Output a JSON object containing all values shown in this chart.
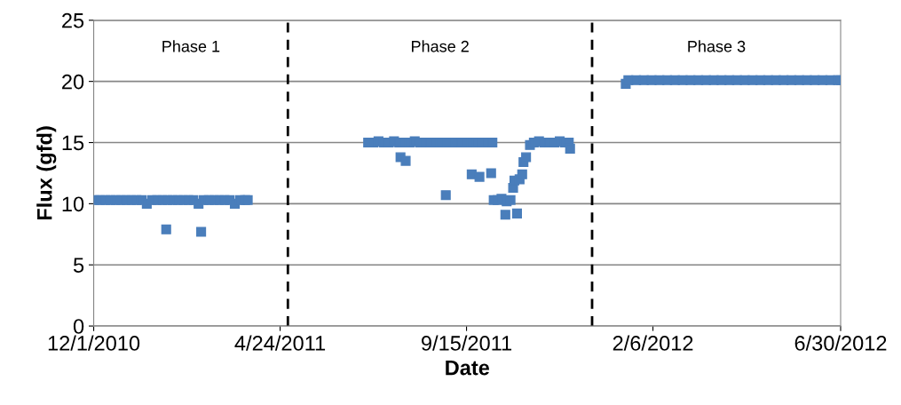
{
  "chart_data": {
    "type": "scatter",
    "xlabel": "Date",
    "ylabel": "Flux (gfd)",
    "series": [
      {
        "color": "#4a7ebb",
        "x": [
          "2010-12-02",
          "2010-12-06",
          "2010-12-10",
          "2010-12-14",
          "2010-12-18",
          "2010-12-22",
          "2010-12-26",
          "2010-12-30",
          "2011-01-03",
          "2011-01-07",
          "2011-01-11",
          "2011-01-15",
          "2011-01-19",
          "2011-01-23",
          "2011-01-26",
          "2011-01-27",
          "2011-01-31",
          "2011-02-04",
          "2011-02-08",
          "2011-02-12",
          "2011-02-16",
          "2011-02-20",
          "2011-02-22",
          "2011-02-24",
          "2011-02-28",
          "2011-03-04",
          "2011-03-08",
          "2011-03-12",
          "2011-03-16",
          "2011-03-20",
          "2011-03-24",
          "2011-03-28",
          "2011-03-30",
          "2011-07-01",
          "2011-07-05",
          "2011-07-09",
          "2011-07-13",
          "2011-07-17",
          "2011-07-21",
          "2011-07-25",
          "2011-07-26",
          "2011-07-29",
          "2011-07-30",
          "2011-08-02",
          "2011-08-06",
          "2011-08-10",
          "2011-08-14",
          "2011-08-18",
          "2011-08-22",
          "2011-08-26",
          "2011-08-30",
          "2011-08-31",
          "2011-09-07",
          "2011-09-11",
          "2011-09-15",
          "2011-09-19",
          "2011-09-19",
          "2011-09-23",
          "2011-09-25",
          "2011-09-27",
          "2011-10-01",
          "2011-10-04",
          "2011-10-05",
          "2011-10-06",
          "2011-10-09",
          "2011-10-12",
          "2011-10-15",
          "2011-10-16",
          "2011-10-19",
          "2011-10-21",
          "2011-10-22",
          "2011-10-24",
          "2011-10-26",
          "2011-10-28",
          "2011-10-29",
          "2011-10-31",
          "2011-11-03",
          "2011-11-06",
          "2011-11-10",
          "2011-11-14",
          "2011-11-18",
          "2011-11-22",
          "2011-11-26",
          "2011-11-30",
          "2011-12-03",
          "2011-12-04",
          "2012-01-16",
          "2012-01-18",
          "2012-01-24",
          "2012-01-30",
          "2012-02-05",
          "2012-02-11",
          "2012-02-17",
          "2012-02-23",
          "2012-02-29",
          "2012-03-06",
          "2012-03-12",
          "2012-03-18",
          "2012-03-24",
          "2012-03-30",
          "2012-04-05",
          "2012-04-11",
          "2012-04-17",
          "2012-04-23",
          "2012-04-29",
          "2012-05-05",
          "2012-05-11",
          "2012-05-17",
          "2012-05-23",
          "2012-05-29",
          "2012-06-04",
          "2012-06-10",
          "2012-06-16",
          "2012-06-22",
          "2012-06-28",
          "2012-06-30"
        ],
        "values": [
          10.3,
          10.3,
          10.3,
          10.3,
          10.3,
          10.3,
          10.3,
          10.3,
          10.3,
          10.3,
          10.0,
          10.3,
          10.3,
          10.3,
          7.9,
          10.3,
          10.3,
          10.3,
          10.3,
          10.3,
          10.3,
          10.0,
          7.7,
          10.3,
          10.3,
          10.3,
          10.3,
          10.3,
          10.3,
          10.0,
          10.3,
          10.3,
          10.3,
          15.0,
          15.0,
          15.1,
          15.0,
          15.0,
          15.1,
          15.0,
          13.8,
          15.0,
          13.5,
          15.0,
          15.1,
          15.0,
          15.0,
          15.0,
          15.0,
          15.0,
          10.7,
          15.0,
          15.0,
          15.0,
          15.0,
          12.4,
          15.0,
          15.0,
          12.2,
          15.0,
          15.0,
          12.5,
          15.0,
          10.3,
          10.3,
          10.4,
          9.1,
          10.2,
          10.3,
          11.3,
          11.9,
          9.2,
          12.0,
          12.4,
          13.4,
          13.8,
          14.8,
          15.0,
          15.1,
          15.0,
          15.0,
          15.0,
          15.1,
          15.0,
          15.0,
          14.5,
          19.8,
          20.1,
          20.1,
          20.1,
          20.1,
          20.1,
          20.1,
          20.1,
          20.1,
          20.1,
          20.1,
          20.1,
          20.1,
          20.1,
          20.1,
          20.1,
          20.1,
          20.1,
          20.1,
          20.1,
          20.1,
          20.1,
          20.1,
          20.1,
          20.1,
          20.1,
          20.1,
          20.1,
          20.1,
          20.1
        ]
      }
    ],
    "marker": "square",
    "xlim": [
      "2010-12-01",
      "2012-06-30"
    ],
    "xticks": [
      {
        "value": "2010-12-01",
        "label": "12/1/2010"
      },
      {
        "value": "2011-04-24",
        "label": "4/24/2011"
      },
      {
        "value": "2011-09-15",
        "label": "9/15/2011"
      },
      {
        "value": "2012-02-06",
        "label": "2/6/2012"
      },
      {
        "value": "2012-06-30",
        "label": "6/30/2012"
      }
    ],
    "ylim": [
      0,
      25
    ],
    "yticks": [
      0,
      5,
      10,
      15,
      20,
      25
    ],
    "grid": "y",
    "ref_lines": [
      {
        "axis": "x",
        "value": "2011-04-30",
        "color": "#000000",
        "line_style": "dashed"
      },
      {
        "axis": "x",
        "value": "2011-12-21",
        "color": "#000000",
        "line_style": "dashed"
      }
    ],
    "annotations": [
      "Phase 1",
      "Phase 2",
      "Phase 3"
    ]
  }
}
